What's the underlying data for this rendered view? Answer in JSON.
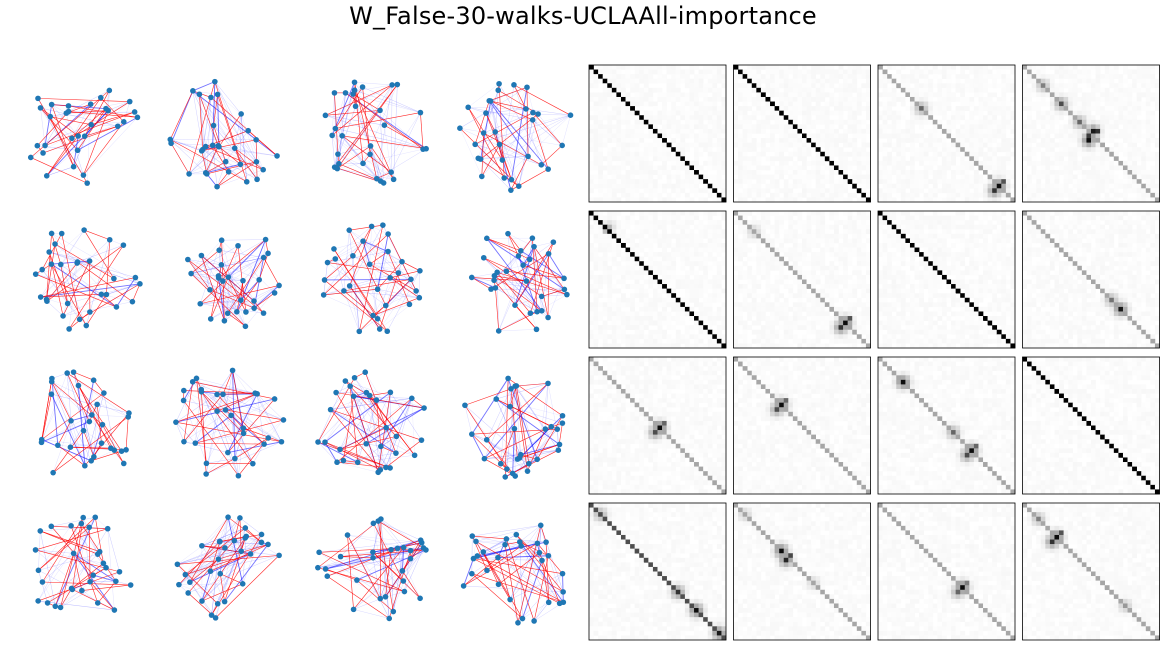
{
  "figure": {
    "title": "W_False-30-walks-UCLAAll-importance"
  },
  "colors": {
    "node": "#1f77b4",
    "walk_edge": "#ff0000",
    "importance_edge": "#0000ff",
    "matrix_frame": "#000000"
  },
  "chart_data": [
    {
      "type": "network_graph_grid",
      "rows": 4,
      "cols": 4,
      "nodes_per_graph": 30,
      "node_color": "#1f77b4",
      "walk_edge_color": "red",
      "importance_edge_color": "blue",
      "axes": "off"
    },
    {
      "type": "heatmap",
      "rows": 4,
      "cols": 4,
      "matrix_size": 30,
      "colormap": "gray_r",
      "ticks": "none",
      "panels": [
        {
          "diag": 1.0,
          "blobs": []
        },
        {
          "diag": 1.0,
          "blobs": []
        },
        {
          "diag": 0.35,
          "blobs": [
            {
              "i": 9,
              "j": 9,
              "v": 0.6
            },
            {
              "i": 26,
              "j": 26,
              "v": 0.95
            },
            {
              "i": 27,
              "j": 25,
              "v": 0.8
            }
          ]
        },
        {
          "diag": 0.35,
          "blobs": [
            {
              "i": 4,
              "j": 4,
              "v": 0.5
            },
            {
              "i": 8,
              "j": 8,
              "v": 0.7
            },
            {
              "i": 12,
              "j": 12,
              "v": 0.6
            },
            {
              "i": 14,
              "j": 15,
              "v": 0.9
            },
            {
              "i": 16,
              "j": 14,
              "v": 0.95
            }
          ]
        },
        {
          "diag": 1.0,
          "blobs": [
            {
              "i": 3,
              "j": 4,
              "v": 0.3
            }
          ]
        },
        {
          "diag": 0.35,
          "blobs": [
            {
              "i": 4,
              "j": 4,
              "v": 0.35
            },
            {
              "i": 24,
              "j": 24,
              "v": 0.95
            },
            {
              "i": 25,
              "j": 23,
              "v": 0.8
            }
          ]
        },
        {
          "diag": 1.0,
          "blobs": []
        },
        {
          "diag": 0.35,
          "blobs": [
            {
              "i": 19,
              "j": 19,
              "v": 0.55
            },
            {
              "i": 21,
              "j": 21,
              "v": 0.9
            }
          ]
        },
        {
          "diag": 0.35,
          "blobs": [
            {
              "i": 15,
              "j": 15,
              "v": 0.95
            },
            {
              "i": 16,
              "j": 14,
              "v": 0.7
            }
          ]
        },
        {
          "diag": 0.35,
          "blobs": [
            {
              "i": 10,
              "j": 10,
              "v": 0.95
            },
            {
              "i": 11,
              "j": 9,
              "v": 0.7
            }
          ]
        },
        {
          "diag": 0.35,
          "blobs": [
            {
              "i": 5,
              "j": 5,
              "v": 0.95
            },
            {
              "i": 16,
              "j": 16,
              "v": 0.6
            },
            {
              "i": 20,
              "j": 20,
              "v": 0.95
            },
            {
              "i": 21,
              "j": 19,
              "v": 0.7
            }
          ]
        },
        {
          "diag": 1.0,
          "blobs": []
        },
        {
          "diag": 0.7,
          "blobs": [
            {
              "i": 2,
              "j": 2,
              "v": 0.6
            },
            {
              "i": 19,
              "j": 19,
              "v": 0.8
            },
            {
              "i": 23,
              "j": 23,
              "v": 0.95
            },
            {
              "i": 28,
              "j": 28,
              "v": 0.9
            }
          ]
        },
        {
          "diag": 0.35,
          "blobs": [
            {
              "i": 2,
              "j": 2,
              "v": 0.35
            },
            {
              "i": 10,
              "j": 10,
              "v": 0.95
            },
            {
              "i": 12,
              "j": 11,
              "v": 0.85
            },
            {
              "i": 17,
              "j": 17,
              "v": 0.3
            }
          ]
        },
        {
          "diag": 0.35,
          "blobs": [
            {
              "i": 18,
              "j": 18,
              "v": 0.95
            },
            {
              "i": 19,
              "j": 17,
              "v": 0.6
            }
          ]
        },
        {
          "diag": 0.35,
          "blobs": [
            {
              "i": 3,
              "j": 3,
              "v": 0.5
            },
            {
              "i": 7,
              "j": 7,
              "v": 0.95
            },
            {
              "i": 8,
              "j": 6,
              "v": 0.8
            },
            {
              "i": 22,
              "j": 22,
              "v": 0.4
            }
          ]
        }
      ]
    }
  ]
}
